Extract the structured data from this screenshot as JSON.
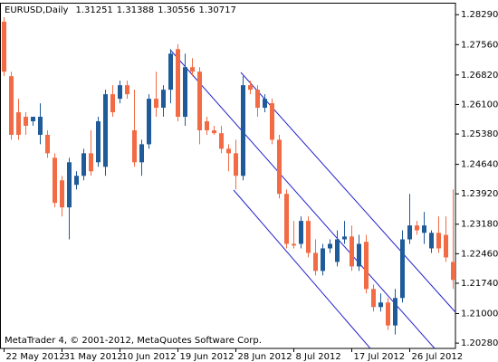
{
  "chart_data": {
    "type": "candlestick",
    "title": "EURUSD,Daily",
    "quote": [
      1.31251,
      1.31388,
      1.30556,
      1.30717
    ],
    "watermark": "MetaTrader 4, © 2001-2012, MetaQuotes Software Corp.",
    "categories": [
      "22 May 2012",
      null,
      null,
      null,
      null,
      null,
      null,
      null,
      "31 May 2012",
      null,
      null,
      null,
      null,
      null,
      null,
      null,
      "10 Jun 2012",
      null,
      null,
      null,
      null,
      null,
      null,
      null,
      "19 Jun 2012",
      null,
      null,
      null,
      null,
      null,
      null,
      null,
      "28 Jun 2012",
      null,
      null,
      null,
      null,
      null,
      null,
      null,
      "8 Jul 2012",
      null,
      null,
      null,
      null,
      null,
      null,
      null,
      "17 Jul 2012",
      null,
      null,
      null,
      null,
      null,
      null,
      null,
      "26 Jul 2012",
      null,
      null,
      null,
      null,
      null,
      null
    ],
    "open": [
      1.2812,
      1.2679,
      1.2591,
      1.258,
      1.2569,
      1.2536,
      1.2536,
      1.248,
      1.2425,
      1.2359,
      1.2414,
      1.2436,
      1.2491,
      1.2469,
      1.2458,
      1.2635,
      1.2624,
      1.2657,
      1.2547,
      1.2469,
      1.2513,
      1.2624,
      1.2602,
      1.2646,
      1.2745,
      1.258,
      1.2701,
      1.269,
      1.2569,
      1.2547,
      1.254,
      1.2502,
      1.2491,
      1.2436,
      1.2657,
      1.2646,
      1.2602,
      1.2613,
      1.2524,
      1.2392,
      1.227,
      1.227,
      1.2326,
      1.2248,
      1.2204,
      1.2259,
      1.2226,
      1.2281,
      1.2288,
      1.2215,
      1.2275,
      1.216,
      1.2116,
      1.2127,
      1.2071,
      1.2138,
      1.2281,
      1.2315,
      1.2297,
      1.2259,
      1.2297,
      1.2292,
      1.2226
    ],
    "high": [
      1.2823,
      1.269,
      1.2624,
      1.2591,
      1.258,
      1.2613,
      1.2547,
      1.2491,
      1.2436,
      1.248,
      1.2447,
      1.2502,
      1.2547,
      1.258,
      1.2646,
      1.2657,
      1.2668,
      1.2668,
      1.2646,
      1.2524,
      1.2635,
      1.269,
      1.2657,
      1.2745,
      1.2757,
      1.2734,
      1.2723,
      1.2701,
      1.258,
      1.2558,
      1.2558,
      1.2513,
      1.2524,
      1.2679,
      1.2668,
      1.2657,
      1.2635,
      1.2624,
      1.2536,
      1.2403,
      1.2326,
      1.2337,
      1.2337,
      1.2281,
      1.227,
      1.2281,
      1.2303,
      1.2326,
      1.2315,
      1.2292,
      1.2292,
      1.2171,
      1.2149,
      1.2138,
      1.216,
      1.2303,
      1.2392,
      1.2326,
      1.2348,
      1.2303,
      1.2337,
      1.2337,
      1.2403
    ],
    "low": [
      1.2679,
      1.2524,
      1.2524,
      1.2536,
      1.2558,
      1.2513,
      1.248,
      1.2359,
      1.2337,
      1.2281,
      1.2403,
      1.2425,
      1.2436,
      1.2458,
      1.2436,
      1.258,
      1.2613,
      1.2624,
      1.2458,
      1.2436,
      1.2502,
      1.258,
      1.258,
      1.2613,
      1.2569,
      1.2558,
      1.2679,
      1.2513,
      1.2536,
      1.2536,
      1.2491,
      1.2447,
      1.2403,
      1.2425,
      1.2635,
      1.258,
      1.2591,
      1.2513,
      1.2381,
      1.2259,
      1.2259,
      1.2259,
      1.2237,
      1.2193,
      1.2193,
      1.2248,
      1.2215,
      1.227,
      1.2204,
      1.2204,
      1.2149,
      1.2105,
      1.2105,
      1.206,
      1.2049,
      1.2127,
      1.227,
      1.2292,
      1.227,
      1.2248,
      1.2248,
      1.2226,
      1.216
    ],
    "close": [
      1.269,
      1.2536,
      1.2536,
      1.2558,
      1.258,
      1.258,
      1.2491,
      1.237,
      1.2359,
      1.2469,
      1.2436,
      1.2491,
      1.2447,
      1.2569,
      1.2635,
      1.2591,
      1.2657,
      1.2635,
      1.2469,
      1.2513,
      1.2624,
      1.2602,
      1.2646,
      1.2734,
      1.258,
      1.2701,
      1.269,
      1.2547,
      1.2547,
      1.254,
      1.2502,
      1.2491,
      1.2436,
      1.2657,
      1.2646,
      1.2602,
      1.2624,
      1.2524,
      1.2392,
      1.227,
      1.2266,
      1.2326,
      1.2248,
      1.2204,
      1.2259,
      1.227,
      1.2281,
      1.2288,
      1.2215,
      1.227,
      1.216,
      1.2116,
      1.2127,
      1.2071,
      1.2138,
      1.2281,
      1.2315,
      1.2303,
      1.2315,
      1.2297,
      1.2259,
      1.2237,
      1.2182
    ],
    "up_color": "#1f5b99",
    "down_color": "#f26b45",
    "ylim": [
      1.2015,
      1.2856
    ],
    "yticks": [
      {
        "value": 1.2829,
        "label": "1.28290"
      },
      {
        "value": 1.2756,
        "label": "1.27560"
      },
      {
        "value": 1.2682,
        "label": "1.26820"
      },
      {
        "value": 1.261,
        "label": "1.26100"
      },
      {
        "value": 1.2538,
        "label": "1.25380"
      },
      {
        "value": 1.2464,
        "label": "1.24640"
      },
      {
        "value": 1.2392,
        "label": "1.23920"
      },
      {
        "value": 1.2318,
        "label": "1.23180"
      },
      {
        "value": 1.2246,
        "label": "1.22460"
      },
      {
        "value": 1.2174,
        "label": "1.21740"
      },
      {
        "value": 1.21,
        "label": "1.21000"
      },
      {
        "value": 1.2028,
        "label": "1.20280"
      }
    ]
  }
}
